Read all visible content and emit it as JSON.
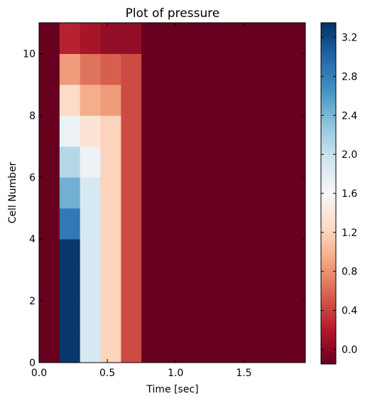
{
  "chart_data": {
    "type": "heatmap",
    "title": "Plot of pressure",
    "xlabel": "Time [sec]",
    "ylabel": "Cell Number",
    "xlim": [
      0.0,
      1.95
    ],
    "ylim": [
      0,
      11
    ],
    "x_ticks": [
      0.0,
      0.5,
      1.0,
      1.5
    ],
    "x_tick_labels": [
      "0.0",
      "0.5",
      "1.0",
      "1.5"
    ],
    "y_ticks": [
      0,
      2,
      4,
      6,
      8,
      10
    ],
    "y_tick_labels": [
      "0",
      "2",
      "4",
      "6",
      "8",
      "10"
    ],
    "time_step": 0.15,
    "colormap": "RdBu",
    "colorbar": {
      "vmin": -0.15,
      "vmax": 3.35,
      "ticks": [
        0.0,
        0.4,
        0.8,
        1.2,
        1.6,
        2.0,
        2.4,
        2.8,
        3.2
      ],
      "tick_labels": [
        "0.0",
        "0.4",
        "0.8",
        "1.2",
        "1.6",
        "2.0",
        "2.4",
        "2.8",
        "3.2"
      ]
    },
    "values_by_row_from_bottom": [
      [
        -0.15,
        3.3,
        1.9,
        1.2,
        0.45,
        -0.15
      ],
      [
        -0.15,
        3.3,
        1.9,
        1.2,
        0.45,
        -0.15
      ],
      [
        -0.15,
        3.3,
        1.9,
        1.2,
        0.45,
        -0.15
      ],
      [
        -0.15,
        3.3,
        1.9,
        1.2,
        0.45,
        -0.15
      ],
      [
        -0.15,
        2.85,
        1.9,
        1.2,
        0.45,
        -0.15
      ],
      [
        -0.15,
        2.45,
        1.9,
        1.2,
        0.45,
        -0.15
      ],
      [
        -0.15,
        2.1,
        1.7,
        1.2,
        0.45,
        -0.15
      ],
      [
        -0.15,
        1.7,
        1.35,
        1.2,
        0.45,
        -0.15
      ],
      [
        -0.15,
        1.25,
        0.95,
        0.85,
        0.45,
        -0.15
      ],
      [
        -0.15,
        0.85,
        0.65,
        0.55,
        0.45,
        -0.15
      ],
      [
        -0.15,
        0.25,
        0.15,
        0.05,
        0.05,
        -0.15
      ]
    ],
    "fill_value_after_last_column": -0.15
  }
}
